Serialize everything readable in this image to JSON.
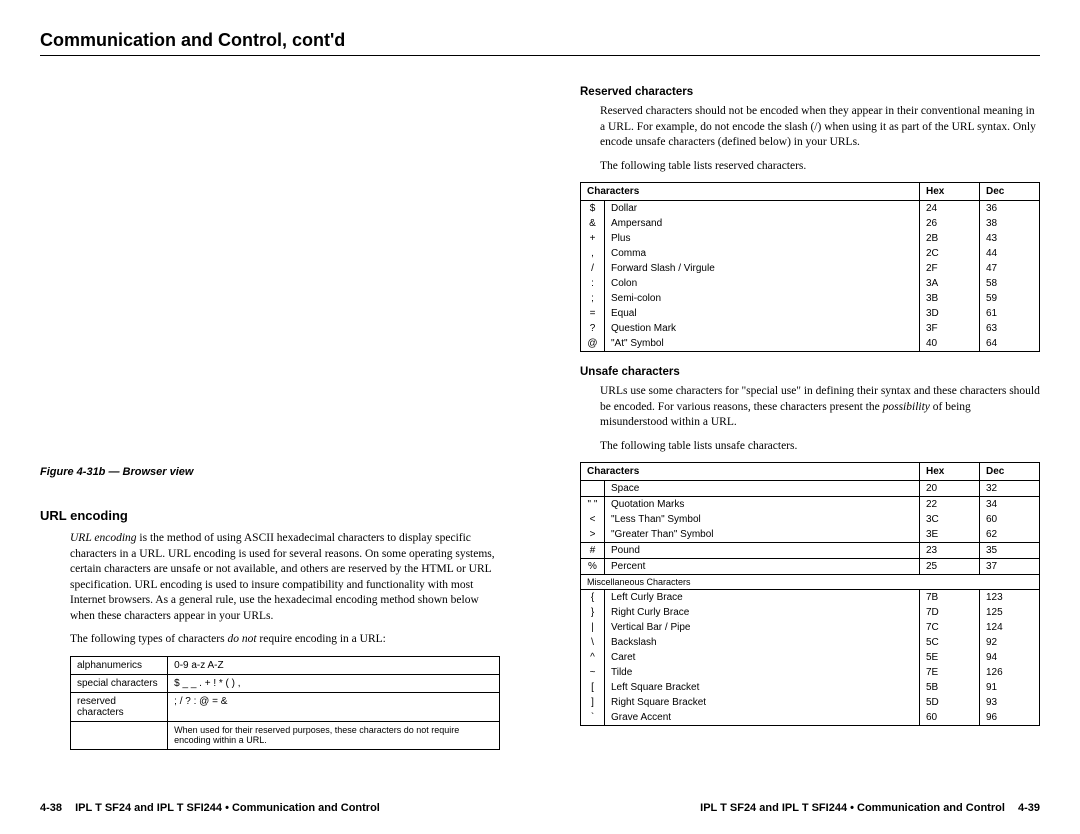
{
  "header": "Communication and Control, cont'd",
  "figure_caption": "Figure 4-31b — Browser view",
  "url_encoding": {
    "heading": "URL encoding",
    "p1_lead": "URL encoding",
    "p1": " is the method of using ASCII hexadecimal characters to display specific characters in a URL. URL encoding is used for several reasons. On some operating systems, certain characters are unsafe or not available, and others are reserved by the HTML or URL specification. URL encoding is used to insure compatibility and functionality with most Internet browsers. As a general rule, use the hexadecimal encoding method shown below when these characters appear in your URLs.",
    "p2_a": "The following types of characters ",
    "p2_em": "do not",
    "p2_b": " require encoding in a URL:",
    "table_rows": [
      [
        "alphanumerics",
        "0-9  a-z  A-Z"
      ],
      [
        "special characters",
        "$ _ _ . + ! * ( ) ,"
      ],
      [
        "reserved characters",
        "; / ? : @ = &"
      ]
    ],
    "table_note": "When used for their reserved purposes, these characters do not require encoding within a URL."
  },
  "reserved": {
    "heading": "Reserved characters",
    "p1": "Reserved characters should not be encoded when they appear in their conventional meaning in a URL. For example, do not encode the slash (/) when using it as part of the URL syntax. Only encode unsafe characters (defined below) in your URLs.",
    "p2": "The following table lists reserved characters.",
    "headers": [
      "Characters",
      "Hex",
      "Dec"
    ],
    "rows": [
      [
        "$",
        "Dollar",
        "24",
        "36"
      ],
      [
        "&",
        "Ampersand",
        "26",
        "38"
      ],
      [
        "+",
        "Plus",
        "2B",
        "43"
      ],
      [
        ",",
        "Comma",
        "2C",
        "44"
      ],
      [
        "/",
        "Forward Slash / Virgule",
        "2F",
        "47"
      ],
      [
        ":",
        "Colon",
        "3A",
        "58"
      ],
      [
        ";",
        "Semi-colon",
        "3B",
        "59"
      ],
      [
        "=",
        "Equal",
        "3D",
        "61"
      ],
      [
        "?",
        "Question Mark",
        "3F",
        "63"
      ],
      [
        "@",
        "\"At\" Symbol",
        "40",
        "64"
      ]
    ]
  },
  "unsafe": {
    "heading": "Unsafe characters",
    "p1_a": "URLs use some characters for \"special use\" in defining their syntax and these characters should be encoded. For various reasons, these characters present the ",
    "p1_em": "possibility",
    "p1_b": " of being misunderstood within a URL.",
    "p2": "The following table lists unsafe characters.",
    "headers": [
      "Characters",
      "Hex",
      "Dec"
    ],
    "group1": [
      [
        "",
        "Space",
        "20",
        "32"
      ]
    ],
    "group2": [
      [
        "\" \"",
        "Quotation Marks",
        "22",
        "34"
      ],
      [
        "<",
        "\"Less Than\" Symbol",
        "3C",
        "60"
      ],
      [
        ">",
        "\"Greater Than\" Symbol",
        "3E",
        "62"
      ]
    ],
    "group3": [
      [
        "#",
        "Pound",
        "23",
        "35"
      ]
    ],
    "group4": [
      [
        "%",
        "Percent",
        "25",
        "37"
      ]
    ],
    "misc_label": "Miscellaneous Characters",
    "group5": [
      [
        "{",
        "Left Curly Brace",
        "7B",
        "123"
      ],
      [
        "}",
        "Right Curly Brace",
        "7D",
        "125"
      ],
      [
        "|",
        "Vertical Bar / Pipe",
        "7C",
        "124"
      ],
      [
        "\\",
        "Backslash",
        "5C",
        "92"
      ],
      [
        "^",
        "Caret",
        "5E",
        "94"
      ],
      [
        "~",
        "Tilde",
        "7E",
        "126"
      ],
      [
        "[",
        "Left Square Bracket",
        "5B",
        "91"
      ],
      [
        "]",
        "Right Square Bracket",
        "5D",
        "93"
      ],
      [
        "`",
        "Grave Accent",
        "60",
        "96"
      ]
    ]
  },
  "footer": {
    "left_page": "4-38",
    "left_text": "IPL T SF24 and IPL T SFI244 • Communication and Control",
    "right_text": "IPL T SF24 and IPL T SFI244 • Communication and Control",
    "right_page": "4-39"
  }
}
